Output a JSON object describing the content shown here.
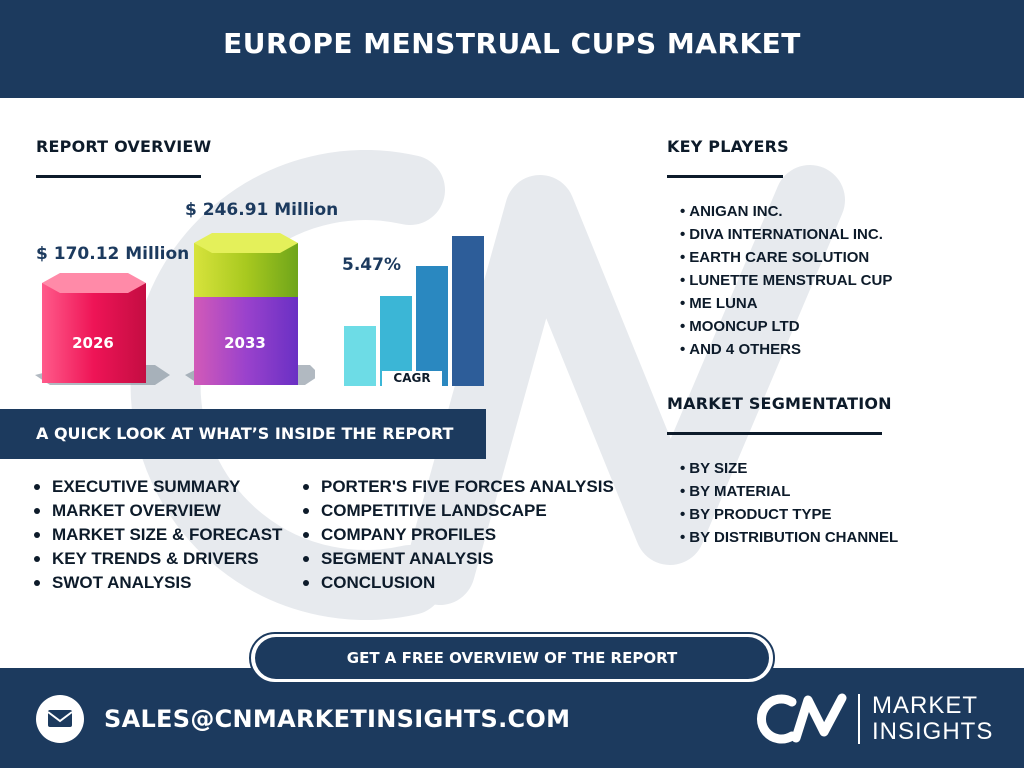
{
  "title": "EUROPE MENSTRUAL CUPS MARKET",
  "report_overview": {
    "heading": "REPORT OVERVIEW",
    "value_2026": "$ 170.12 Million",
    "value_2033": "$ 246.91 Million",
    "year_2026": "2026",
    "year_2033": "2033",
    "cagr_value": "5.47%",
    "cagr_label": "CAGR"
  },
  "key_players": {
    "heading": "KEY PLAYERS",
    "items": [
      "ANIGAN INC.",
      "DIVA INTERNATIONAL INC.",
      "EARTH CARE SOLUTION",
      "LUNETTE MENSTRUAL CUP",
      "ME LUNA",
      "MOONCUP LTD",
      "AND 4 OTHERS"
    ]
  },
  "market_segmentation": {
    "heading": "MARKET SEGMENTATION",
    "items": [
      "BY SIZE",
      "BY MATERIAL",
      "BY PRODUCT TYPE",
      "BY DISTRIBUTION CHANNEL"
    ]
  },
  "quick_look": {
    "heading": "A QUICK LOOK AT WHAT’S INSIDE THE REPORT",
    "left": [
      "EXECUTIVE SUMMARY",
      "MARKET OVERVIEW",
      "MARKET SIZE & FORECAST",
      "KEY TRENDS & DRIVERS",
      "SWOT ANALYSIS"
    ],
    "right": [
      "PORTER'S FIVE FORCES ANALYSIS",
      "COMPETITIVE LANDSCAPE",
      "COMPANY PROFILES",
      "SEGMENT ANALYSIS",
      "CONCLUSION"
    ]
  },
  "cta_label": "GET A FREE OVERVIEW OF THE REPORT",
  "footer": {
    "email": "SALES@CNMARKETINSIGHTS.COM",
    "logo_line1": "MARKET",
    "logo_line2": "INSIGHTS",
    "icons": [
      "mail-icon",
      "cn-logo-icon"
    ]
  },
  "colors": {
    "navy": "#1c3a5e",
    "bar_2026": "#e8104f",
    "bar_2033_top": "#a5c81e",
    "bar_2033_bottom": "#8a3fd1",
    "cagr_bars": [
      "#6ddce6",
      "#3bb6d6",
      "#2a88c0",
      "#2d5d99"
    ]
  }
}
